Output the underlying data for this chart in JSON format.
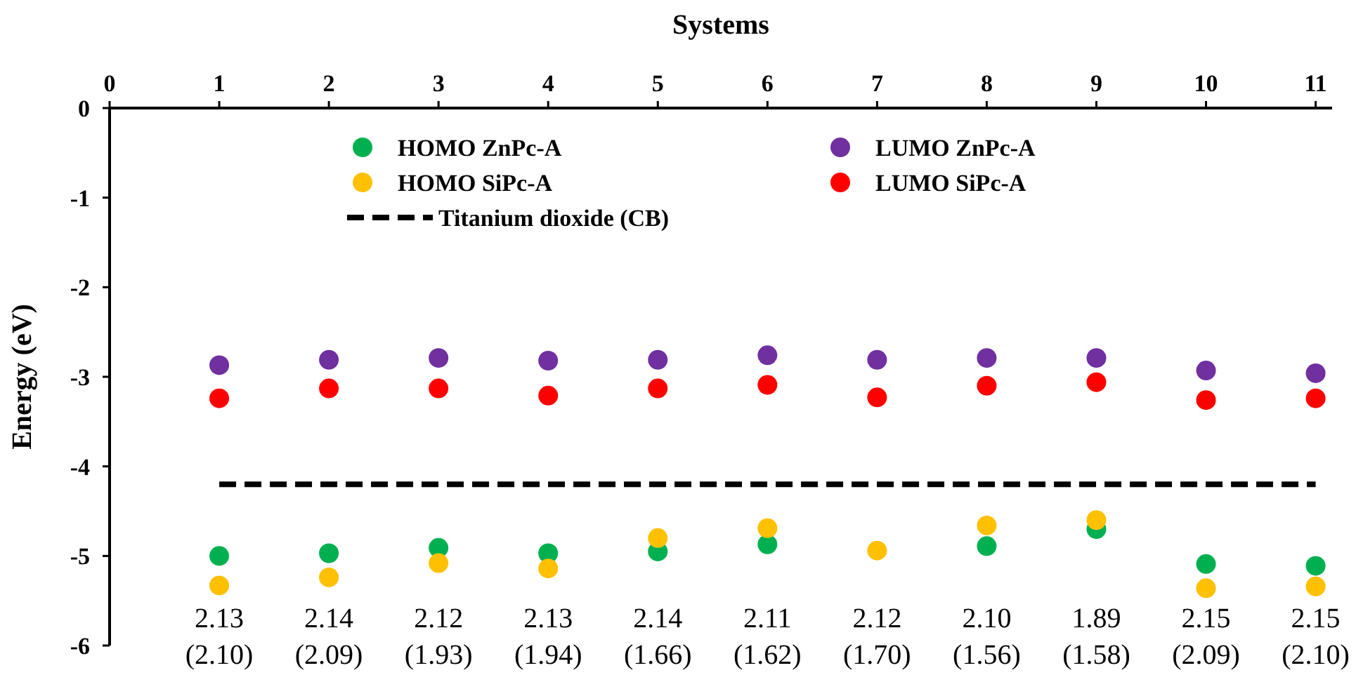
{
  "chart_data": {
    "type": "scatter",
    "xlabel": "Systems",
    "ylabel": "Energy (eV)",
    "x": [
      1,
      2,
      3,
      4,
      5,
      6,
      7,
      8,
      9,
      10,
      11
    ],
    "xlim": [
      0,
      11.15
    ],
    "xticks": [
      0,
      1,
      2,
      3,
      4,
      5,
      6,
      7,
      8,
      9,
      10,
      11
    ],
    "ylim": [
      -6,
      0
    ],
    "yticks": [
      0,
      -1,
      -2,
      -3,
      -4,
      -5,
      -6
    ],
    "grid": false,
    "legend": "top",
    "marker": "circle",
    "series": [
      {
        "name": "HOMO ZnPc-A",
        "color": "#00b050",
        "values": [
          -5.0,
          -4.97,
          -4.91,
          -4.97,
          -4.95,
          -4.87,
          null,
          -4.89,
          -4.7,
          -5.09,
          -5.11
        ]
      },
      {
        "name": "LUMO ZnPc-A",
        "color": "#7030a0",
        "values": [
          -2.87,
          -2.81,
          -2.79,
          -2.82,
          -2.81,
          -2.76,
          -2.81,
          -2.79,
          -2.79,
          -2.93,
          -2.96
        ]
      },
      {
        "name": "HOMO SiPc-A",
        "color": "#ffc000",
        "values": [
          -5.33,
          -5.24,
          -5.08,
          -5.14,
          -4.8,
          -4.69,
          -4.94,
          -4.66,
          -4.6,
          -5.36,
          -5.34
        ]
      },
      {
        "name": "LUMO SiPc-A",
        "color": "#ff0000",
        "values": [
          -3.24,
          -3.13,
          -3.13,
          -3.21,
          -3.13,
          -3.09,
          -3.23,
          -3.1,
          -3.06,
          -3.26,
          -3.24
        ]
      },
      {
        "name": "Titanium dioxide (CB)",
        "type": "line",
        "color": "#000000",
        "line_style": "dashed",
        "marker": "none",
        "x": [
          1,
          11
        ],
        "values": [
          -4.2,
          -4.2
        ]
      }
    ],
    "annotations": [
      "2.13\n(2.10)",
      "2.14\n(2.09)",
      "2.12\n(1.93)",
      "2.13\n(1.94)",
      "2.14\n(1.66)",
      "2.11\n(1.62)",
      "2.12\n(1.70)",
      "2.10\n(1.56)",
      "1.89\n(1.58)",
      "2.15\n(2.09)",
      "2.15\n(2.10)"
    ]
  }
}
